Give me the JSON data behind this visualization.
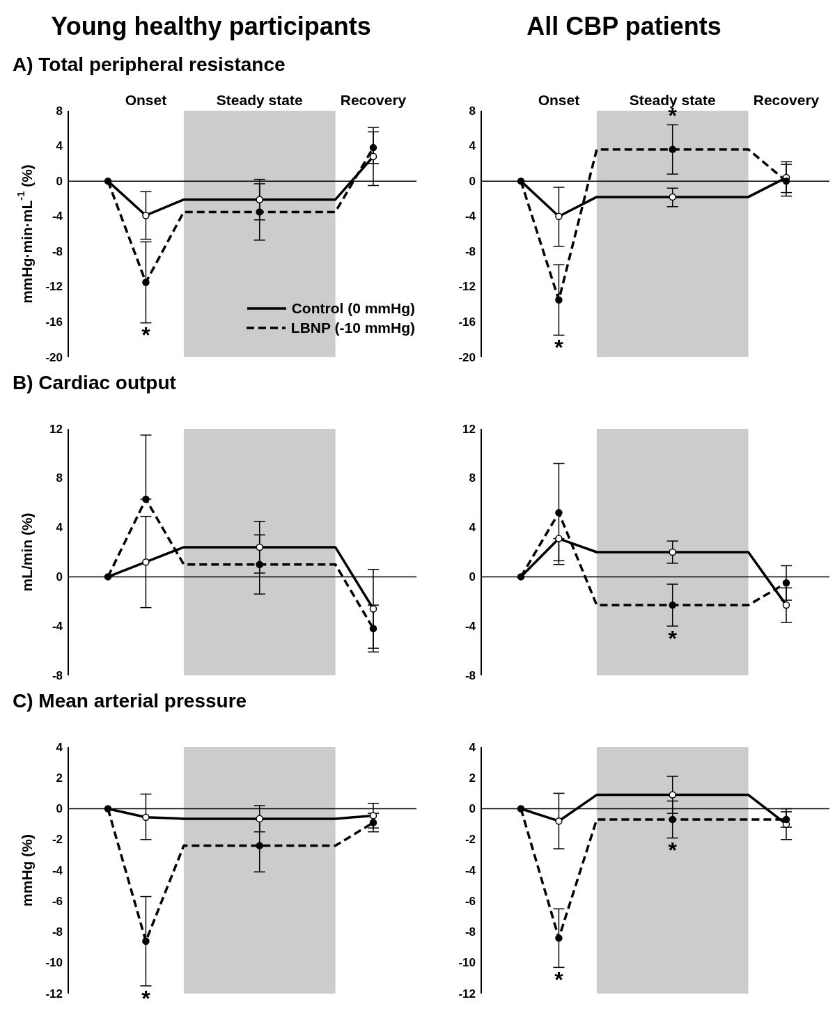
{
  "chart_data": [
    {
      "type": "line",
      "title": "Young healthy participants",
      "subtitle": "A) Total peripheral resistance",
      "ylabel": "mmHg·min·mL$^{-1}$ (%)",
      "categories": [
        null,
        "Onset",
        null,
        null,
        "Steady state",
        null,
        null,
        "Recovery"
      ],
      "ylim": [
        -20,
        8
      ],
      "yticks": [
        -20,
        -16,
        -12,
        -8,
        -4,
        0,
        4,
        8
      ],
      "legend": "bottom right",
      "ref_lines": [
        {
          "axis": "y",
          "value": 0,
          "color": "#000000"
        }
      ],
      "annotations": [
        {
          "text": "*",
          "x": "Onset",
          "y": -16.1
        }
      ],
      "series": [
        {
          "name": "Control (0 mmHg)",
          "color": "#000000",
          "line_style": "solid",
          "marker": "none",
          "values": [
            0,
            -3.9,
            -2.1,
            -2.1,
            -2.1,
            -2.1,
            -2.1,
            2.8
          ]
        },
        {
          "name": "LBNP (-10 mmHg)",
          "color": "#000000",
          "line_style": "dashed",
          "marker": "none",
          "values": [
            0,
            -11.5,
            -3.5,
            -3.5,
            -3.5,
            -3.5,
            -3.5,
            3.8
          ]
        },
        {
          "type": "scatter",
          "color": "#ffffff",
          "marker": "circle",
          "values": [
            null,
            -3.9,
            null,
            null,
            -2.1,
            null,
            null,
            2.8
          ],
          "errors": [
            null,
            [
              -6.6,
              -1.2
            ],
            null,
            null,
            [
              -4.4,
              0.2
            ],
            null,
            null,
            [
              -0.5,
              6.1
            ]
          ]
        },
        {
          "type": "scatter",
          "color": "#000000",
          "marker": "circle",
          "values": [
            0,
            -11.5,
            null,
            null,
            -3.5,
            null,
            null,
            3.8
          ],
          "errors": [
            null,
            [
              -16.1,
              -6.9
            ],
            null,
            null,
            [
              -6.7,
              -0.3
            ],
            null,
            null,
            [
              2.0,
              5.6
            ]
          ]
        }
      ]
    },
    {
      "type": "line",
      "title": "All CBP patients",
      "categories": [
        null,
        "Onset",
        null,
        null,
        "Steady state",
        null,
        null,
        "Recovery"
      ],
      "ylim": [
        -20,
        8
      ],
      "yticks": [
        -20,
        -16,
        -12,
        -8,
        -4,
        0,
        4,
        8
      ],
      "ref_lines": [
        {
          "axis": "y",
          "value": 0,
          "color": "#000000"
        }
      ],
      "annotations": [
        {
          "text": "*",
          "x": "Onset",
          "y": -17.5
        },
        {
          "text": "*",
          "x": "Steady state",
          "y": 6.4
        }
      ],
      "series": [
        {
          "color": "#000000",
          "line_style": "solid",
          "marker": "none",
          "values": [
            0,
            -4.0,
            -1.8,
            -1.8,
            -1.8,
            -1.8,
            -1.8,
            0.4
          ]
        },
        {
          "color": "#000000",
          "line_style": "dashed",
          "marker": "none",
          "values": [
            0,
            -13.5,
            3.6,
            3.6,
            3.6,
            3.6,
            3.6,
            0.0
          ]
        },
        {
          "type": "scatter",
          "color": "#ffffff",
          "marker": "circle",
          "values": [
            null,
            -4.0,
            null,
            null,
            -1.8,
            null,
            null,
            0.4
          ],
          "errors": [
            null,
            [
              -7.4,
              -0.7
            ],
            null,
            null,
            [
              -2.9,
              -0.8
            ],
            null,
            null,
            [
              -1.7,
              2.2
            ]
          ]
        },
        {
          "type": "scatter",
          "color": "#000000",
          "marker": "circle",
          "values": [
            0,
            -13.5,
            null,
            null,
            3.6,
            null,
            null,
            0.0
          ],
          "errors": [
            null,
            [
              -17.5,
              -9.5
            ],
            null,
            null,
            [
              0.8,
              6.4
            ],
            null,
            null,
            [
              -1.3,
              1.9
            ]
          ]
        }
      ]
    },
    {
      "type": "line",
      "subtitle": "B) Cardiac output",
      "ylabel": "mL/min (%)",
      "categories": [
        null,
        "Onset",
        null,
        null,
        "Steady state",
        null,
        null,
        "Recovery"
      ],
      "ylim": [
        -8,
        12
      ],
      "yticks": [
        -8,
        -4,
        0,
        4,
        8,
        12
      ],
      "tick_labels": "y",
      "ref_lines": [
        {
          "axis": "y",
          "value": 0,
          "color": "#000000"
        }
      ],
      "series": [
        {
          "color": "#000000",
          "line_style": "solid",
          "marker": "none",
          "values": [
            0,
            1.2,
            2.4,
            2.4,
            2.4,
            2.4,
            2.4,
            -2.6
          ]
        },
        {
          "color": "#000000",
          "line_style": "dashed",
          "marker": "none",
          "values": [
            0,
            6.3,
            1.0,
            1.0,
            1.0,
            1.0,
            1.0,
            -4.2
          ]
        },
        {
          "type": "scatter",
          "color": "#ffffff",
          "marker": "circle",
          "values": [
            null,
            1.2,
            null,
            null,
            2.4,
            null,
            null,
            -2.6
          ],
          "errors": [
            null,
            [
              -2.5,
              4.9
            ],
            null,
            null,
            [
              0.3,
              4.5
            ],
            null,
            null,
            [
              -5.8,
              0.6
            ]
          ]
        },
        {
          "type": "scatter",
          "color": "#000000",
          "marker": "circle",
          "values": [
            0,
            6.3,
            null,
            null,
            1.0,
            null,
            null,
            -4.2
          ],
          "errors": [
            null,
            [
              6.3,
              11.5
            ],
            null,
            null,
            [
              -1.4,
              3.4
            ],
            null,
            null,
            [
              -6.1,
              -2.3
            ]
          ]
        }
      ]
    },
    {
      "type": "line",
      "categories": [
        null,
        "Onset",
        null,
        null,
        "Steady state",
        null,
        null,
        "Recovery"
      ],
      "ylim": [
        -8,
        12
      ],
      "yticks": [
        -8,
        -4,
        0,
        4,
        8,
        12
      ],
      "tick_labels": "y",
      "ref_lines": [
        {
          "axis": "y",
          "value": 0,
          "color": "#000000"
        }
      ],
      "annotations": [
        {
          "text": "*",
          "x": "Steady state",
          "y": -4.0
        }
      ],
      "series": [
        {
          "color": "#000000",
          "line_style": "solid",
          "marker": "none",
          "values": [
            0,
            3.1,
            2.0,
            2.0,
            2.0,
            2.0,
            2.0,
            -2.3
          ]
        },
        {
          "color": "#000000",
          "line_style": "dashed",
          "marker": "none",
          "values": [
            0,
            5.2,
            -2.3,
            -2.3,
            -2.3,
            -2.3,
            -2.3,
            -0.5
          ]
        },
        {
          "type": "scatter",
          "color": "#ffffff",
          "marker": "circle",
          "values": [
            null,
            3.1,
            null,
            null,
            2.0,
            null,
            null,
            -2.3
          ],
          "errors": [
            null,
            [
              1.0,
              3.1
            ],
            null,
            null,
            [
              1.1,
              2.9
            ],
            null,
            null,
            [
              -3.7,
              -0.9
            ]
          ]
        },
        {
          "type": "scatter",
          "color": "#000000",
          "marker": "circle",
          "values": [
            0,
            5.2,
            null,
            null,
            -2.3,
            null,
            null,
            -0.5
          ],
          "errors": [
            null,
            [
              1.3,
              9.2
            ],
            null,
            null,
            [
              -4.0,
              -0.6
            ],
            null,
            null,
            [
              -1.9,
              0.9
            ]
          ]
        }
      ]
    },
    {
      "type": "line",
      "subtitle": "C) Mean arterial pressure",
      "ylabel": "mmHg (%)",
      "categories": [
        null,
        "Onset",
        null,
        null,
        "Steady state",
        null,
        null,
        "Recovery"
      ],
      "ylim": [
        -12,
        4
      ],
      "yticks": [
        -12,
        -10,
        -8,
        -6,
        -4,
        -2,
        0,
        2,
        4
      ],
      "tick_labels": "y",
      "ref_lines": [
        {
          "axis": "y",
          "value": 0,
          "color": "#000000"
        }
      ],
      "annotations": [
        {
          "text": "*",
          "x": "Onset",
          "y": -11.5
        }
      ],
      "series": [
        {
          "color": "#000000",
          "line_style": "solid",
          "marker": "none",
          "values": [
            0,
            -0.55,
            -0.65,
            -0.65,
            -0.65,
            -0.65,
            -0.65,
            -0.45
          ]
        },
        {
          "color": "#000000",
          "line_style": "dashed",
          "marker": "none",
          "values": [
            0,
            -8.6,
            -2.4,
            -2.4,
            -2.4,
            -2.4,
            -2.4,
            -0.9
          ]
        },
        {
          "type": "scatter",
          "color": "#ffffff",
          "marker": "circle",
          "values": [
            null,
            -0.55,
            null,
            null,
            -0.65,
            null,
            null,
            -0.45
          ],
          "errors": [
            null,
            [
              -2.0,
              0.95
            ],
            null,
            null,
            [
              -1.5,
              0.2
            ],
            null,
            null,
            [
              -1.25,
              0.35
            ]
          ]
        },
        {
          "type": "scatter",
          "color": "#000000",
          "marker": "circle",
          "values": [
            0,
            -8.6,
            null,
            null,
            -2.4,
            null,
            null,
            -0.9
          ],
          "errors": [
            null,
            [
              -11.5,
              -5.7
            ],
            null,
            null,
            [
              -4.1,
              -0.7
            ],
            null,
            null,
            [
              -1.5,
              -0.3
            ]
          ]
        }
      ]
    },
    {
      "type": "line",
      "categories": [
        null,
        "Onset",
        null,
        null,
        "Steady state",
        null,
        null,
        "Recovery"
      ],
      "ylim": [
        -12,
        4
      ],
      "yticks": [
        -12,
        -10,
        -8,
        -6,
        -4,
        -2,
        0,
        2,
        4
      ],
      "tick_labels": "y",
      "ref_lines": [
        {
          "axis": "y",
          "value": 0,
          "color": "#000000"
        }
      ],
      "annotations": [
        {
          "text": "*",
          "x": "Onset",
          "y": -10.3
        },
        {
          "text": "*",
          "x": "Steady state",
          "y": -1.9
        }
      ],
      "series": [
        {
          "color": "#000000",
          "line_style": "solid",
          "marker": "none",
          "values": [
            0,
            -0.8,
            0.9,
            0.9,
            0.9,
            0.9,
            0.9,
            -1.0
          ]
        },
        {
          "color": "#000000",
          "line_style": "dashed",
          "marker": "none",
          "values": [
            0,
            -8.4,
            -0.7,
            -0.7,
            -0.7,
            -0.7,
            -0.7,
            -0.7
          ]
        },
        {
          "type": "scatter",
          "color": "#ffffff",
          "marker": "circle",
          "values": [
            null,
            -0.8,
            null,
            null,
            0.9,
            null,
            null,
            -1.0
          ],
          "errors": [
            null,
            [
              -2.6,
              1.0
            ],
            null,
            null,
            [
              -0.3,
              2.1
            ],
            null,
            null,
            [
              -2.0,
              0.0
            ]
          ]
        },
        {
          "type": "scatter",
          "color": "#000000",
          "marker": "circle",
          "values": [
            0,
            -8.4,
            null,
            null,
            -0.7,
            null,
            null,
            -0.7
          ],
          "errors": [
            null,
            [
              -10.3,
              -6.5
            ],
            null,
            null,
            [
              -1.9,
              0.5
            ],
            null,
            null,
            [
              -1.2,
              -0.2
            ]
          ]
        }
      ]
    }
  ]
}
